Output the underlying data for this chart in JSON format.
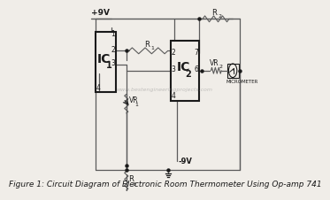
{
  "title": "Figure 1: Circuit Diagram of Electronic Room Thermometer Using Op-amp 741",
  "title_fontsize": 6.5,
  "bg_color": "#f0ede8",
  "line_color": "#5a5a5a",
  "box_color": "#1a1a1a",
  "supply_pos": "+9V",
  "supply_neg": "-9V",
  "ic1_label": "IC",
  "ic1_sub": "1",
  "ic2_label": "IC",
  "ic2_sub": "2",
  "r1_label": "R",
  "r1_sub": "1",
  "r2_label": "R",
  "r2_sub": "2",
  "r3_label": "R",
  "r3_sub": "3",
  "vr1_label": "VR",
  "vr1_sub": "1",
  "vr2_label": "VR",
  "vr2_sub": "2",
  "micrometer_label": "MICROMETER",
  "watermark": "www.bestengineeringprojects.com"
}
